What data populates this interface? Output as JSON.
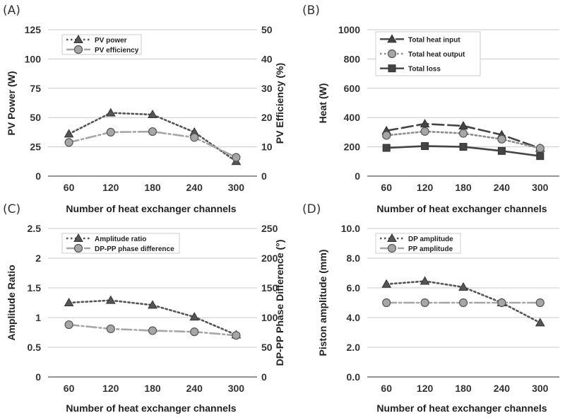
{
  "chart_data": [
    {
      "id": "A",
      "type": "line",
      "panel_label": "(A)",
      "xlabel": "Number of heat exchanger channels",
      "ylabel": "PV Power (W)",
      "y2label": "PV Efficiency (%)",
      "categories": [
        "60",
        "120",
        "180",
        "240",
        "300"
      ],
      "yticks": [
        "0",
        "25",
        "50",
        "75",
        "100",
        "125"
      ],
      "y2ticks": [
        "0",
        "10",
        "20",
        "30",
        "40",
        "50"
      ],
      "ylim": [
        0,
        125
      ],
      "y2lim": [
        0,
        50
      ],
      "grid": true,
      "legend_position": "top-left",
      "series": [
        {
          "name": "PV power",
          "axis": "left",
          "values": [
            36,
            54,
            52.5,
            37.5,
            12.5
          ],
          "color": "#555555",
          "marker": "triangle",
          "dash": "dot"
        },
        {
          "name": "PV efficiency",
          "axis": "right",
          "values": [
            11.5,
            15,
            15.2,
            13.2,
            6.4
          ],
          "color": "#a6a6a6",
          "marker": "circle",
          "dash": "dashdot"
        }
      ]
    },
    {
      "id": "B",
      "type": "line",
      "panel_label": "(B)",
      "xlabel": "Number of heat exchanger channels",
      "ylabel": "Heat (W)",
      "categories": [
        "60",
        "120",
        "180",
        "240",
        "300"
      ],
      "yticks": [
        "0",
        "200",
        "400",
        "600",
        "800",
        "1000"
      ],
      "ylim": [
        0,
        1000
      ],
      "grid": true,
      "legend_position": "top-left",
      "series": [
        {
          "name": "Total heat input",
          "axis": "left",
          "values": [
            310,
            357,
            343,
            282,
            190
          ],
          "color": "#444444",
          "marker": "triangle",
          "dash": "longdash"
        },
        {
          "name": "Total heat output",
          "axis": "left",
          "values": [
            278,
            305,
            292,
            252,
            190
          ],
          "color": "#8c8c8c",
          "marker": "circle",
          "dash": "dot"
        },
        {
          "name": "Total loss",
          "axis": "left",
          "values": [
            193,
            205,
            200,
            172,
            137
          ],
          "color": "#444444",
          "marker": "square",
          "dash": "solid"
        }
      ]
    },
    {
      "id": "C",
      "type": "line",
      "panel_label": "(C)",
      "xlabel": "Number of heat exchanger channels",
      "ylabel": "Amplitude Ratio",
      "y2label": "DP-PP Phase Difference (°)",
      "categories": [
        "60",
        "120",
        "180",
        "240",
        "300"
      ],
      "yticks": [
        "0",
        "0.5",
        "1",
        "1.5",
        "2",
        "2.5"
      ],
      "y2ticks": [
        "0",
        "50",
        "100",
        "150",
        "200",
        "250"
      ],
      "ylim": [
        0,
        2.5
      ],
      "y2lim": [
        0,
        250
      ],
      "grid": true,
      "legend_position": "top-left",
      "series": [
        {
          "name": "Amplitude ratio",
          "axis": "left",
          "values": [
            1.25,
            1.29,
            1.21,
            1.01,
            0.71
          ],
          "color": "#555555",
          "marker": "triangle",
          "dash": "dot"
        },
        {
          "name": "DP-PP phase difference",
          "axis": "right",
          "values": [
            88,
            81,
            78,
            76,
            70
          ],
          "color": "#a6a6a6",
          "marker": "circle",
          "dash": "dashdot"
        }
      ]
    },
    {
      "id": "D",
      "type": "line",
      "panel_label": "(D)",
      "xlabel": "Number of heat exchanger channels",
      "ylabel": "Piston amplitude (mm)",
      "categories": [
        "60",
        "120",
        "180",
        "240",
        "300"
      ],
      "yticks": [
        "0.0",
        "2.0",
        "4.0",
        "6.0",
        "8.0",
        "10.0"
      ],
      "ylim": [
        0,
        10
      ],
      "grid": true,
      "legend_position": "top-left",
      "series": [
        {
          "name": "DP amplitude",
          "axis": "left",
          "values": [
            6.25,
            6.45,
            6.05,
            5.0,
            3.65
          ],
          "color": "#555555",
          "marker": "triangle",
          "dash": "dot"
        },
        {
          "name": "PP amplitude",
          "axis": "left",
          "values": [
            5.0,
            5.0,
            5.0,
            5.0,
            5.0
          ],
          "color": "#a6a6a6",
          "marker": "circle",
          "dash": "dashdot"
        }
      ]
    }
  ]
}
